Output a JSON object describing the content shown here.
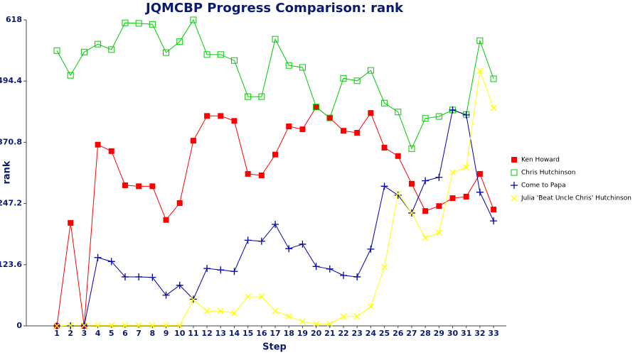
{
  "chart_data": {
    "type": "line",
    "title": "JQMCBP Progress Comparison: rank",
    "x_label": "Step",
    "y_label": "rank",
    "categories": [
      "1",
      "2",
      "3",
      "4",
      "5",
      "6",
      "7",
      "8",
      "9",
      "10",
      "11",
      "12",
      "13",
      "14",
      "15",
      "16",
      "17",
      "18",
      "19",
      "20",
      "21",
      "22",
      "23",
      "24",
      "25",
      "26",
      "27",
      "28",
      "29",
      "30",
      "31",
      "32",
      "33"
    ],
    "ylim": [
      0,
      618
    ],
    "yticks": [
      0,
      123.6,
      247.2,
      370.8,
      494.4,
      618
    ],
    "grid": false,
    "legend": "right",
    "series": [
      {
        "name": "Ken Howard",
        "color": "#ff0000",
        "marker": "filled-square",
        "values": [
          0,
          208,
          0,
          366,
          353,
          284,
          282,
          282,
          214,
          248,
          374,
          424,
          424,
          414,
          307,
          304,
          346,
          403,
          397,
          442,
          420,
          394,
          390,
          430,
          360,
          343,
          287,
          232,
          242,
          258,
          261,
          307,
          235
        ]
      },
      {
        "name": "Chris Hutchinson",
        "color": "#00cc00",
        "marker": "open-square",
        "values": [
          556,
          506,
          553,
          569,
          558,
          612,
          611,
          609,
          552,
          574,
          618,
          548,
          548,
          536,
          463,
          463,
          579,
          526,
          522,
          442,
          420,
          500,
          495,
          516,
          450,
          432,
          358,
          419,
          423,
          436,
          427,
          576,
          499
        ]
      },
      {
        "name": "Come to Papa",
        "color": "#0000aa",
        "marker": "plus",
        "values": [
          0,
          0,
          0,
          138,
          130,
          99,
          99,
          98,
          62,
          82,
          54,
          116,
          113,
          110,
          173,
          171,
          205,
          156,
          165,
          120,
          115,
          102,
          99,
          155,
          282,
          264,
          228,
          293,
          300,
          436,
          426,
          270,
          212
        ]
      },
      {
        "name": "Julia 'Beat Uncle Chris' Hutchinson",
        "color": "#ffff00",
        "marker": "cross",
        "values": [
          0,
          1,
          1,
          1,
          1,
          1,
          1,
          1,
          1,
          1,
          53,
          30,
          30,
          26,
          59,
          59,
          30,
          19,
          9,
          4,
          4,
          19,
          19,
          39,
          119,
          267,
          228,
          178,
          188,
          310,
          320,
          515,
          440
        ]
      }
    ]
  }
}
